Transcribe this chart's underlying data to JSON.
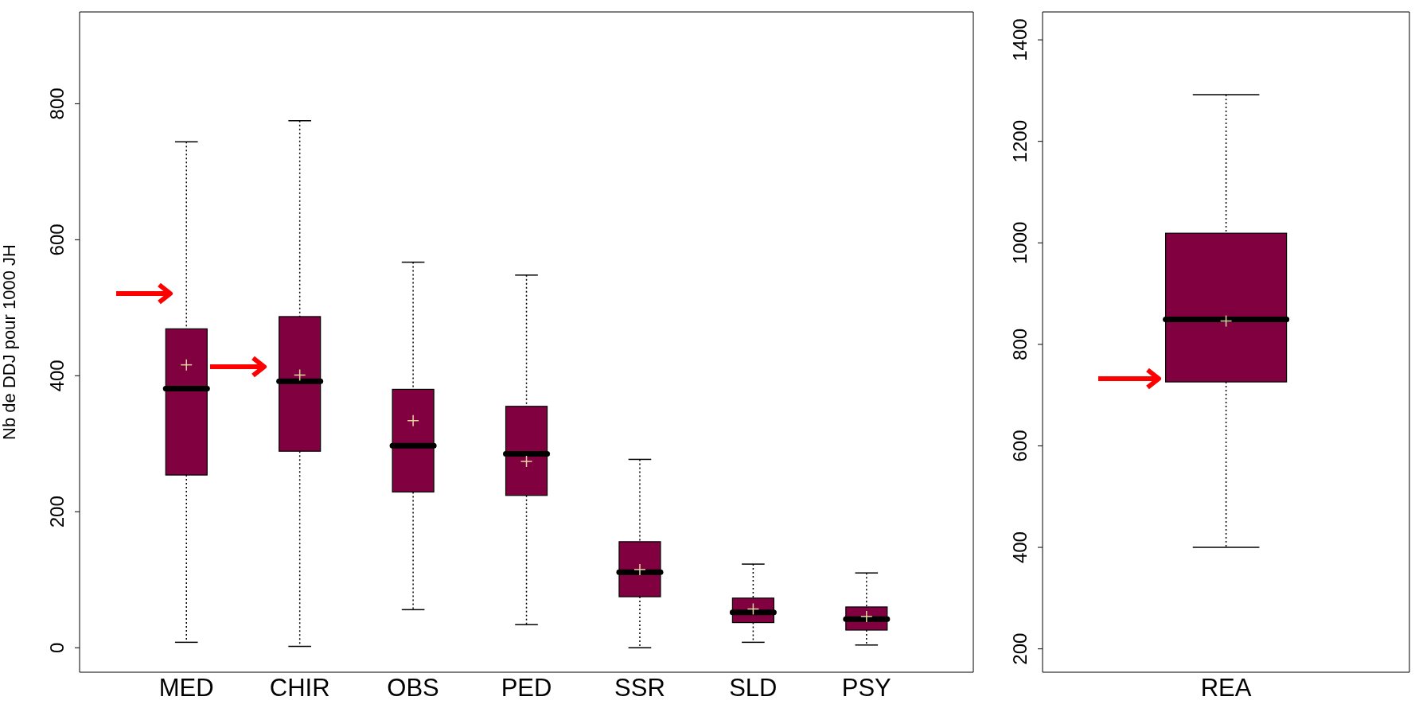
{
  "chart_data": [
    {
      "type": "box",
      "ylabel": "Nb de DDJ pour 1000 JH",
      "categories": [
        "MED",
        "CHIR",
        "OBS",
        "PED",
        "SSR",
        "SLD",
        "PSY"
      ],
      "color": "#800040",
      "ylim": [
        -36,
        935
      ],
      "yticks": [
        0,
        200,
        400,
        600,
        800
      ],
      "boxes": [
        {
          "low": 8,
          "q1": 254,
          "median": 381,
          "q3": 469,
          "high": 744,
          "mean": 416
        },
        {
          "low": 2,
          "q1": 289,
          "median": 392,
          "q3": 487,
          "high": 775,
          "mean": 401
        },
        {
          "low": 56,
          "q1": 229,
          "median": 297,
          "q3": 380,
          "high": 567,
          "mean": 334
        },
        {
          "low": 34,
          "q1": 224,
          "median": 285,
          "q3": 355,
          "high": 548,
          "mean": 274
        },
        {
          "low": 0,
          "q1": 75,
          "median": 111,
          "q3": 156,
          "high": 277,
          "mean": 115
        },
        {
          "low": 8,
          "q1": 37,
          "median": 52,
          "q3": 73,
          "high": 123,
          "mean": 57
        },
        {
          "low": 4,
          "q1": 26,
          "median": 42,
          "q3": 60,
          "high": 110,
          "mean": 46
        }
      ]
    },
    {
      "type": "box",
      "categories": [
        "REA"
      ],
      "color": "#800040",
      "ylim": [
        154,
        1455
      ],
      "yticks": [
        200,
        400,
        600,
        800,
        1000,
        1200,
        1400
      ],
      "boxes": [
        {
          "low": 400,
          "q1": 726,
          "median": 849,
          "q3": 1019,
          "high": 1292,
          "mean": 846
        }
      ]
    }
  ]
}
